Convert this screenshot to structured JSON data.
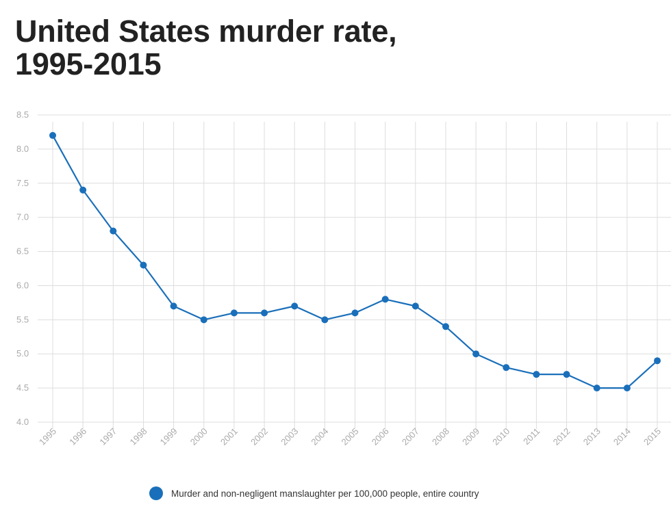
{
  "title_line1": "United States murder rate,",
  "title_line2": "1995-2015",
  "chart_data": {
    "type": "line",
    "title": "United States murder rate, 1995-2015",
    "xlabel": "",
    "ylabel": "",
    "x": [
      "1995",
      "1996",
      "1997",
      "1998",
      "1999",
      "2000",
      "2001",
      "2002",
      "2003",
      "2004",
      "2005",
      "2006",
      "2007",
      "2008",
      "2009",
      "2010",
      "2011",
      "2012",
      "2013",
      "2014",
      "2015"
    ],
    "series": [
      {
        "name": "Murder and non-negligent manslaughter per 100,000 people, entire country",
        "values": [
          8.2,
          7.4,
          6.8,
          6.3,
          5.7,
          5.5,
          5.6,
          5.6,
          5.7,
          5.5,
          5.6,
          5.8,
          5.7,
          5.4,
          5.0,
          4.8,
          4.7,
          4.7,
          4.5,
          4.5,
          4.9
        ]
      }
    ],
    "ylim": [
      4.0,
      8.5
    ],
    "yticks": [
      "4.0",
      "4.5",
      "5.0",
      "5.5",
      "6.0",
      "6.5",
      "7.0",
      "7.5",
      "8.0",
      "8.5"
    ],
    "grid": true,
    "legend_position": "bottom-center"
  },
  "colors": {
    "series": "#1a6fba",
    "grid": "#dddddd",
    "tick_label": "#aaaaaa",
    "title": "#222222"
  }
}
